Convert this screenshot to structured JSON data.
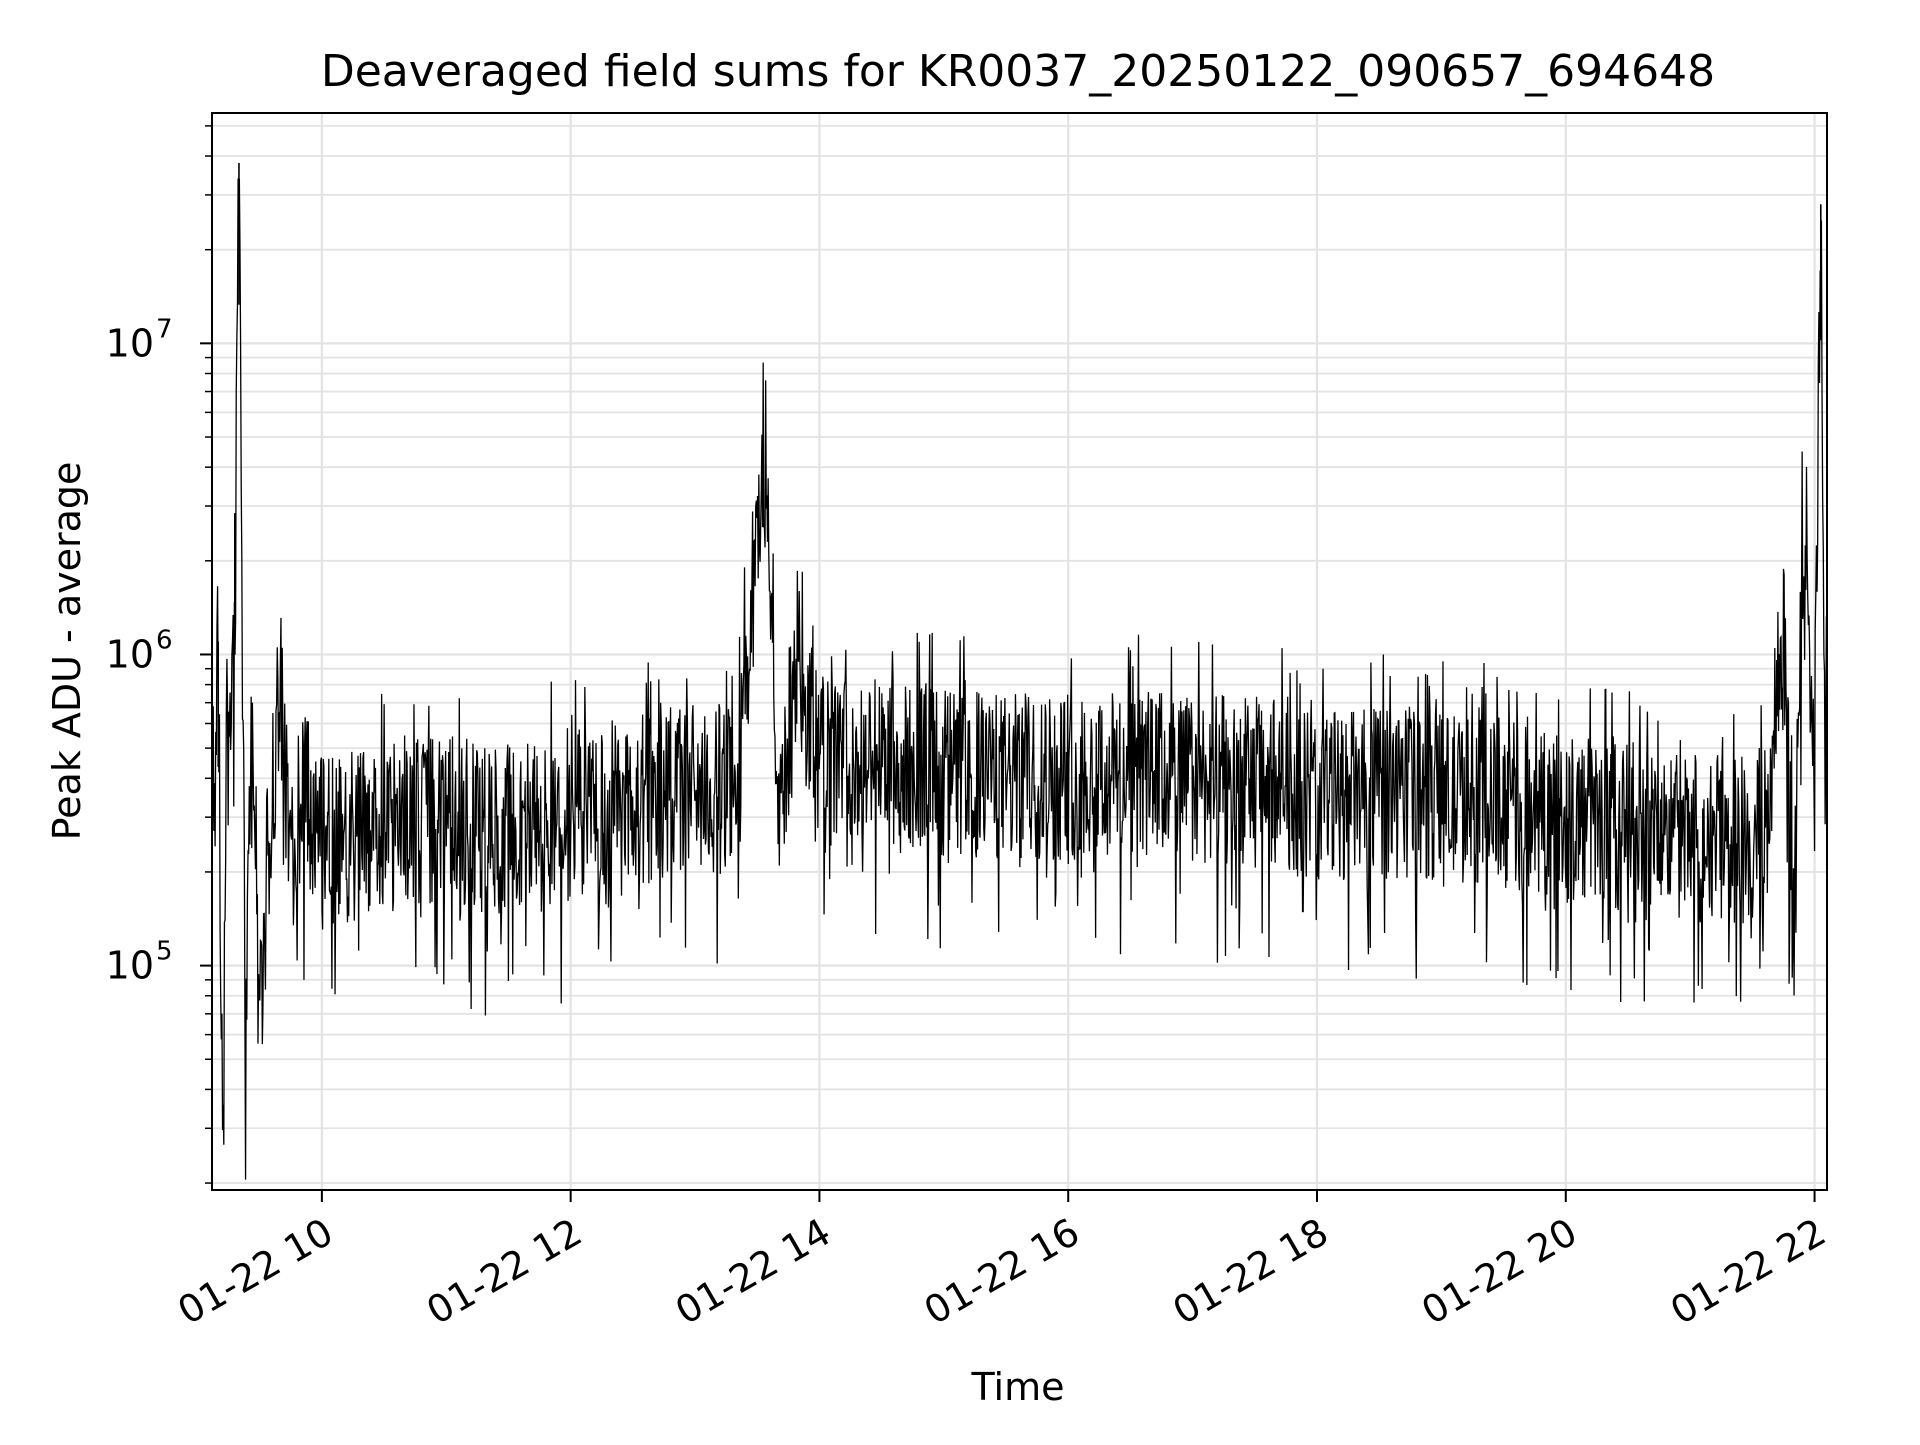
{
  "chart_data": {
    "type": "line",
    "title": "Deaveraged field sums for KR0037_20250122_090657_694648",
    "xlabel": "Time",
    "ylabel": "Peak ADU - average",
    "y_scale": "log",
    "grid": true,
    "xlim": [
      "01-22 09:07",
      "01-22 22:06"
    ],
    "ylim": [
      19000,
      55000000
    ],
    "x_ticks": [
      {
        "value": "01-22 10:00",
        "label": "01-22 10"
      },
      {
        "value": "01-22 12:00",
        "label": "01-22 12"
      },
      {
        "value": "01-22 14:00",
        "label": "01-22 14"
      },
      {
        "value": "01-22 16:00",
        "label": "01-22 16"
      },
      {
        "value": "01-22 18:00",
        "label": "01-22 18"
      },
      {
        "value": "01-22 20:00",
        "label": "01-22 20"
      },
      {
        "value": "01-22 22:00",
        "label": "01-22 22"
      }
    ],
    "y_ticks": [
      {
        "value": 100000,
        "base": "10",
        "exp": "5"
      },
      {
        "value": 1000000,
        "base": "10",
        "exp": "6"
      },
      {
        "value": 10000000,
        "base": "10",
        "exp": "7"
      }
    ],
    "line_color": "#000000",
    "grid_color": "#e3e3e3",
    "series": [
      {
        "x": [
          "01-22 09:07",
          "01-22 09:10",
          "01-22 09:12",
          "01-22 09:14",
          "01-22 09:16",
          "01-22 09:18",
          "01-22 09:20",
          "01-22 09:23",
          "01-22 09:26",
          "01-22 09:29",
          "01-22 09:31",
          "01-22 09:35",
          "01-22 09:40",
          "01-22 09:45",
          "01-22 09:50",
          "01-22 10:00",
          "01-22 10:10",
          "01-22 10:20",
          "01-22 10:40",
          "01-22 11:00",
          "01-22 11:20",
          "01-22 11:40",
          "01-22 12:00",
          "01-22 12:20",
          "01-22 12:40",
          "01-22 13:00",
          "01-22 13:20",
          "01-22 13:35",
          "01-22 13:40",
          "01-22 13:50",
          "01-22 14:00",
          "01-22 14:30",
          "01-22 15:00",
          "01-22 15:30",
          "01-22 16:00",
          "01-22 16:30",
          "01-22 17:00",
          "01-22 17:30",
          "01-22 18:00",
          "01-22 18:30",
          "01-22 19:00",
          "01-22 19:30",
          "01-22 20:00",
          "01-22 20:30",
          "01-22 21:00",
          "01-22 21:15",
          "01-22 21:30",
          "01-22 21:40",
          "01-22 21:45",
          "01-22 21:50",
          "01-22 21:55",
          "01-22 22:00",
          "01-22 22:03",
          "01-22 22:05",
          "01-22 22:06"
        ],
        "y": [
          300000,
          1100000,
          27000,
          600000,
          380000,
          1200000,
          38000000,
          70000,
          450000,
          180000,
          95000,
          300000,
          850000,
          200000,
          350000,
          280000,
          240000,
          260000,
          280000,
          300000,
          270000,
          290000,
          300000,
          330000,
          350000,
          380000,
          360000,
          4800000,
          320000,
          900000,
          430000,
          450000,
          420000,
          400000,
          410000,
          420000,
          400000,
          390000,
          350000,
          360000,
          350000,
          330000,
          300000,
          280000,
          250000,
          260000,
          230000,
          350000,
          1150000,
          120000,
          3400000,
          420000,
          28000000,
          500000,
          480000
        ]
      }
    ]
  }
}
